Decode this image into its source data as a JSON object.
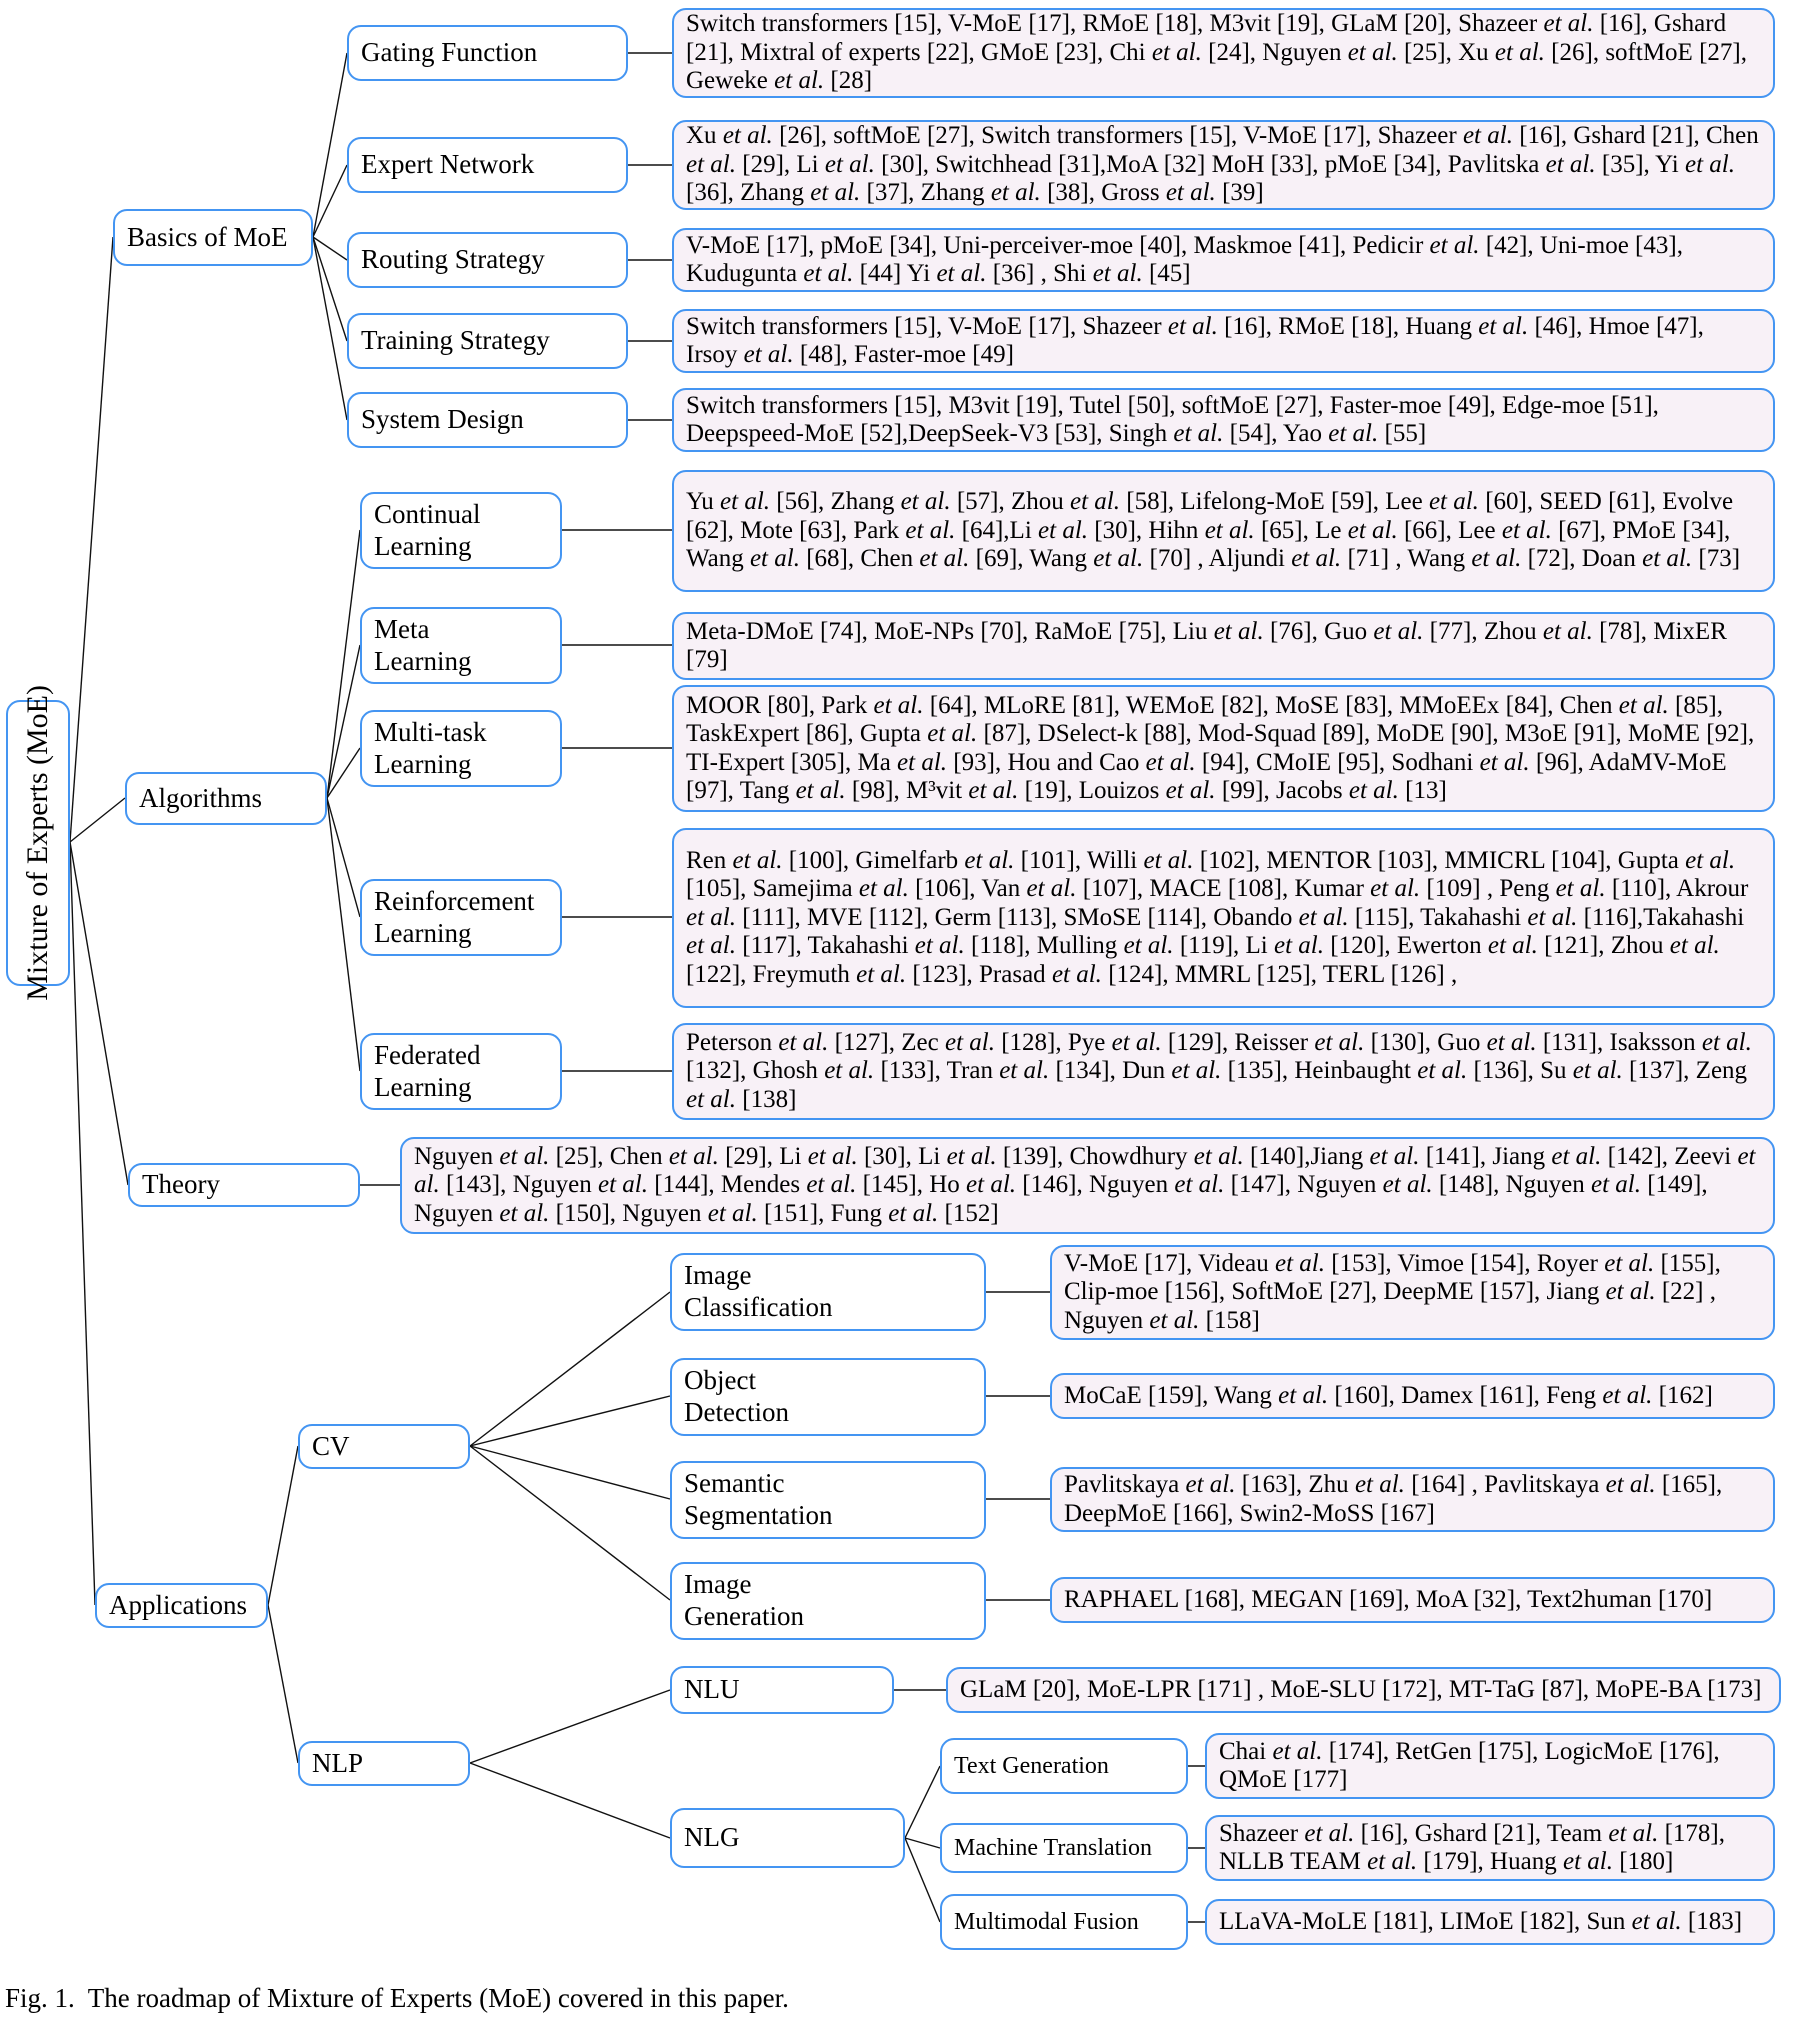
{
  "colors": {
    "box_border": "#4495f2",
    "content_bg": "#f8f1f7",
    "edge": "#111111"
  },
  "caption": "Fig. 1.  The roadmap of Mixture of Experts (MoE) covered in this paper.",
  "diagram": {
    "root": {
      "label": "Mixture of Experts (MoE)"
    },
    "level1": {
      "basics": {
        "label": "Basics of MoE"
      },
      "algorithms": {
        "label": "Algorithms"
      },
      "theory": {
        "label": "Theory",
        "citations": "Nguyen et al. [25], Chen et al. [29], Li et al. [30], Li et al. [139], Chowdhury et al. [140],Jiang et al. [141], Jiang et al. [142], Zeevi et al. [143], Nguyen et al. [144], Mendes et al. [145], Ho et al. [146], Nguyen et al. [147], Nguyen et al. [148], Nguyen et al. [149], Nguyen et al. [150], Nguyen et al. [151], Fung et al. [152]"
      },
      "applications": {
        "label": "Applications"
      }
    },
    "basics_children": {
      "gating": {
        "label": "Gating Function",
        "citations": "Switch transformers [15], V-MoE [17], RMoE [18], M3vit [19], GLaM [20], Shazeer et al. [16], Gshard [21], Mixtral of experts [22], GMoE [23], Chi et al. [24], Nguyen et al. [25], Xu et al. [26], softMoE [27], Geweke et al. [28]"
      },
      "expert": {
        "label": "Expert Network",
        "citations": "Xu et al. [26], softMoE [27], Switch transformers [15], V-MoE [17], Shazeer et al. [16], Gshard [21], Chen et al. [29], Li et al. [30], Switchhead [31],MoA [32] MoH [33], pMoE [34], Pavlitska et al. [35], Yi et al. [36], Zhang et al. [37], Zhang et al. [38], Gross et al. [39]"
      },
      "routing": {
        "label": "Routing Strategy",
        "citations": "V-MoE [17], pMoE [34], Uni-perceiver-moe [40], Maskmoe [41], Pedicir et al. [42], Uni-moe [43], Kudugunta et al. [44] Yi et al. [36] , Shi et al. [45]"
      },
      "training": {
        "label": "Training Strategy",
        "citations": "Switch transformers [15], V-MoE [17], Shazeer et al. [16], RMoE [18], Huang et al. [46], Hmoe [47], Irsoy et al. [48], Faster-moe [49]"
      },
      "system": {
        "label": "System Design",
        "citations": "Switch transformers [15], M3vit [19], Tutel [50], softMoE [27], Faster-moe [49], Edge-moe [51], Deepspeed-MoE [52],DeepSeek-V3 [53], Singh et al. [54], Yao et al. [55]"
      }
    },
    "algorithms_children": {
      "continual": {
        "label": "Continual Learning",
        "citations": "Yu et al. [56], Zhang et al. [57], Zhou et al. [58], Lifelong-MoE [59], Lee et al. [60], SEED [61], Evolve [62], Mote [63], Park et al. [64],Li et al. [30], Hihn et al. [65], Le et al. [66], Lee et al. [67], PMoE [34], Wang et al. [68], Chen et al. [69], Wang et al. [70] , Aljundi et al. [71] , Wang et al. [72], Doan et al. [73]"
      },
      "meta": {
        "label": "Meta Learning",
        "citations": "Meta-DMoE [74], MoE-NPs [70], RaMoE [75], Liu et al. [76], Guo et al. [77], Zhou et al. [78], MixER [79]"
      },
      "multitask": {
        "label": "Multi-task Learning",
        "citations": "MOOR [80], Park et al. [64], MLoRE [81], WEMoE [82], MoSE [83], MMoEEx [84], Chen et al. [85], TaskExpert [86], Gupta et al. [87], DSelect-k [88], Mod-Squad [89], MoDE [90], M3oE [91], MoME [92], TI-Expert [305], Ma et al. [93], Hou and Cao et al. [94], CMoIE [95], Sodhani et al. [96], AdaMV-MoE [97], Tang et al. [98], M³vit et al. [19], Louizos et al. [99], Jacobs et al. [13]"
      },
      "reinforcement": {
        "label": "Reinforcement Learning",
        "citations": "Ren et al. [100], Gimelfarb et al. [101], Willi et al. [102], MENTOR [103], MMICRL [104], Gupta et al. [105], Samejima et al. [106], Van et al. [107], MACE [108], Kumar et al. [109] , Peng et al. [110], Akrour et al. [111], MVE [112], Germ [113], SMoSE [114], Obando et al. [115], Takahashi et al. [116],Takahashi et al. [117], Takahashi et al. [118], Mulling et al. [119], Li et al. [120], Ewerton et al. [121], Zhou et al. [122], Freymuth et al. [123], Prasad et al. [124], MMRL [125], TERL [126] ,"
      },
      "federated": {
        "label": "Federated Learning",
        "citations": "Peterson et al. [127], Zec et al. [128], Pye et al. [129], Reisser et al. [130], Guo et al. [131], Isaksson et al. [132], Ghosh et al. [133], Tran et al. [134], Dun et al. [135], Heinbaught et al. [136], Su et al. [137], Zeng et al. [138]"
      }
    },
    "applications_children": {
      "cv": {
        "label": "CV"
      },
      "nlp": {
        "label": "NLP"
      }
    },
    "cv_children": {
      "image_classification": {
        "label": "Image Classification",
        "citations": "V-MoE [17], Videau et al. [153], Vimoe [154], Royer et al. [155], Clip-moe [156], SoftMoE [27], DeepME [157], Jiang et al. [22] , Nguyen et al. [158]"
      },
      "object_detection": {
        "label": "Object Detection",
        "citations": "MoCaE [159], Wang et al. [160], Damex [161], Feng et al. [162]"
      },
      "semantic_segmentation": {
        "label": "Semantic Segmentation",
        "citations": "Pavlitskaya et al. [163], Zhu et al. [164] , Pavlitskaya et al. [165], DeepMoE [166], Swin2-MoSS [167]"
      },
      "image_generation": {
        "label": "Image Generation",
        "citations": "RAPHAEL [168], MEGAN [169], MoA [32], Text2human [170]"
      }
    },
    "nlp_children": {
      "nlu": {
        "label": "NLU",
        "citations": "GLaM [20], MoE-LPR [171] , MoE-SLU [172], MT-TaG [87], MoPE-BA [173]"
      },
      "nlg": {
        "label": "NLG"
      }
    },
    "nlg_children": {
      "text_generation": {
        "label": "Text Generation",
        "citations": "Chai et al. [174], RetGen [175], LogicMoE [176], QMoE [177]"
      },
      "machine_translation": {
        "label": "Machine Translation",
        "citations": "Shazeer et al. [16], Gshard [21], Team et al. [178], NLLB TEAM et al. [179], Huang et al. [180]"
      },
      "multimodal_fusion": {
        "label": "Multimodal Fusion",
        "citations": "LLaVA-MoLE [181], LIMoE [182], Sun et al. [183]"
      }
    }
  }
}
